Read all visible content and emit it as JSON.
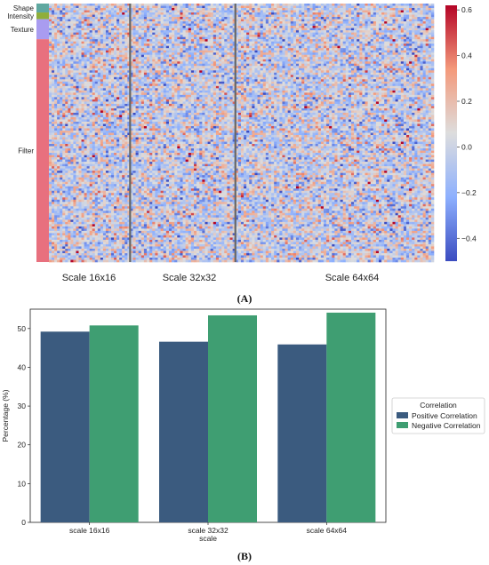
{
  "panel_a": {
    "caption": "(A)",
    "row_groups": [
      {
        "label": "Shape",
        "color": "#5fa8a0",
        "rows": 4
      },
      {
        "label": "Intensity",
        "color": "#8fae3a",
        "rows": 3
      },
      {
        "label": "Texture",
        "color": "#a99cf0",
        "rows": 9
      },
      {
        "label": "Filter",
        "color": "#e8707e",
        "rows": 100
      }
    ],
    "scale_labels": [
      "Scale 16x16",
      "Scale 32x32",
      "Scale 64x64"
    ],
    "column_share": [
      0.27,
      0.35,
      0.66
    ]
  },
  "panel_b": {
    "caption": "(B)"
  },
  "chart_data": [
    {
      "type": "heatmap",
      "title": "",
      "rows": [
        "Shape",
        "Intensity",
        "Texture",
        "Filter"
      ],
      "columns": [
        "Scale 16x16",
        "Scale 32x32",
        "Scale 64x64"
      ],
      "colorbar": {
        "range": [
          -0.5,
          0.62
        ],
        "ticks": [
          -0.4,
          -0.2,
          0.0,
          0.2,
          0.4,
          0.6
        ],
        "tick_labels": [
          "−0.4",
          "−0.2",
          "0.0",
          "0.2",
          "0.4",
          "0.6"
        ],
        "colormap": "coolwarm"
      }
    },
    {
      "type": "bar",
      "categories": [
        "scale 16x16",
        "scale 32x32",
        "scale 64x64"
      ],
      "series": [
        {
          "name": "Positive Correlation",
          "color": "#3b5b7f",
          "values": [
            49.2,
            46.6,
            45.9
          ]
        },
        {
          "name": "Negative Correlation",
          "color": "#3f9e72",
          "values": [
            50.8,
            53.4,
            54.1
          ]
        }
      ],
      "xlabel": "scale",
      "ylabel": "Percentage (%)",
      "ylim": [
        0,
        55
      ],
      "yticks": [
        0,
        10,
        20,
        30,
        40,
        50
      ],
      "legend": {
        "title": "Correlation",
        "placement": "right"
      },
      "grid": false
    }
  ]
}
